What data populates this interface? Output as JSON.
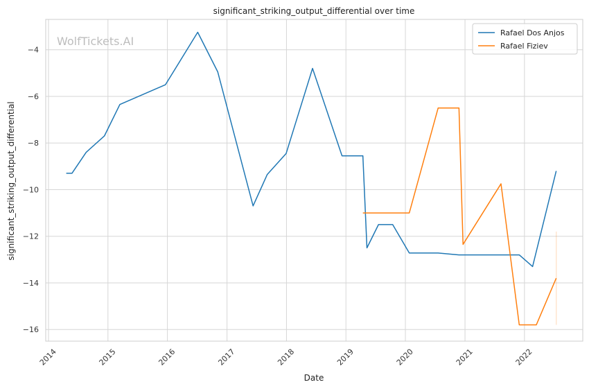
{
  "chart_data": {
    "type": "line",
    "title": "significant_striking_output_differential over time",
    "xlabel": "Date",
    "ylabel": "significant_striking_output_differential",
    "watermark": "WolfTickets.AI",
    "xlim": [
      "2013-12-15",
      "2022-12-25"
    ],
    "ylim": [
      -16.5,
      -2.7
    ],
    "x_ticks": [
      "2014-01-01",
      "2015-01-01",
      "2016-01-01",
      "2017-01-01",
      "2018-01-01",
      "2019-01-01",
      "2020-01-01",
      "2021-01-01",
      "2022-01-01"
    ],
    "x_tick_labels": [
      "2014",
      "2015",
      "2016",
      "2017",
      "2018",
      "2019",
      "2020",
      "2021",
      "2022"
    ],
    "y_ticks": [
      -4,
      -6,
      -8,
      -10,
      -12,
      -14,
      -16
    ],
    "y_tick_labels": [
      "−4",
      "−6",
      "−8",
      "−10",
      "−12",
      "−14",
      "−16"
    ],
    "grid": true,
    "legend_position": "top-right",
    "colors": {
      "Rafael Dos Anjos": "#1f77b4",
      "Rafael Fiziev": "#ff7f0e"
    },
    "series": [
      {
        "name": "Rafael Dos Anjos",
        "color": "#1f77b4",
        "points": [
          {
            "x": "2014-04-20",
            "y": -9.3
          },
          {
            "x": "2014-05-25",
            "y": -9.3
          },
          {
            "x": "2014-08-20",
            "y": -8.4
          },
          {
            "x": "2014-12-10",
            "y": -7.7
          },
          {
            "x": "2015-03-15",
            "y": -6.35
          },
          {
            "x": "2015-12-20",
            "y": -5.5
          },
          {
            "x": "2016-07-05",
            "y": -3.25
          },
          {
            "x": "2016-11-05",
            "y": -4.95
          },
          {
            "x": "2017-06-10",
            "y": -10.7
          },
          {
            "x": "2017-09-05",
            "y": -9.35
          },
          {
            "x": "2017-12-30",
            "y": -8.45
          },
          {
            "x": "2018-06-10",
            "y": -4.8
          },
          {
            "x": "2018-12-08",
            "y": -8.55
          },
          {
            "x": "2019-04-15",
            "y": -8.55
          },
          {
            "x": "2019-05-10",
            "y": -12.5
          },
          {
            "x": "2019-07-20",
            "y": -11.5
          },
          {
            "x": "2019-10-15",
            "y": -11.5
          },
          {
            "x": "2020-01-25",
            "y": -12.72
          },
          {
            "x": "2020-07-20",
            "y": -12.72
          },
          {
            "x": "2020-11-25",
            "y": -12.8
          },
          {
            "x": "2021-11-30",
            "y": -12.8
          },
          {
            "x": "2022-02-20",
            "y": -13.3
          },
          {
            "x": "2022-07-15",
            "y": -9.2
          }
        ]
      },
      {
        "name": "Rafael Fiziev",
        "color": "#ff7f0e",
        "points": [
          {
            "x": "2019-04-15",
            "y": -11.0
          },
          {
            "x": "2020-01-25",
            "y": -11.0
          },
          {
            "x": "2020-07-20",
            "y": -6.5
          },
          {
            "x": "2020-11-25",
            "y": -6.5
          },
          {
            "x": "2020-12-20",
            "y": -12.35
          },
          {
            "x": "2021-08-10",
            "y": -9.75
          },
          {
            "x": "2021-11-30",
            "y": -15.8
          },
          {
            "x": "2022-03-15",
            "y": -15.8
          },
          {
            "x": "2022-07-15",
            "y": -13.8
          }
        ]
      }
    ],
    "error_band": {
      "series": "Rafael Fiziev",
      "x": "2022-07-15",
      "y_low": -15.8,
      "y_high": -11.8,
      "color": "#ff7f0e"
    }
  }
}
